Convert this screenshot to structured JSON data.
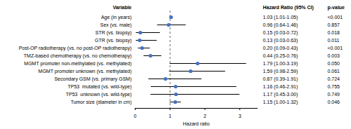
{
  "chart_data": {
    "type": "forest",
    "categories": [
      "Age (in years)",
      "Sex (vs. male)",
      "STR (vs. biopsy)",
      "GTR (vs. biopsy)",
      "Post-OP radiotherapy (vs. no post-OP radiotherapy)",
      "TMZ-based chemotherapy (vs. no chemotherapy)",
      "MGMT promoter non-methylated (vs. methylated)",
      "MGMT promoter unknown (vs. methylated)",
      "Secondary GSM (vs. primary GSM)",
      "TP53  mutated (vs. wild-type)",
      "TP53  unknown (vs. wild-type)",
      "Tumor size (diameter in cm)"
    ],
    "values": [
      1.03,
      0.96,
      0.15,
      0.13,
      0.2,
      0.44,
      1.79,
      1.59,
      0.87,
      1.16,
      1.17,
      1.15
    ],
    "ci_low": [
      1.01,
      0.64,
      0.03,
      0.03,
      0.09,
      0.25,
      1.0,
      0.98,
      0.39,
      0.46,
      0.45,
      1.0
    ],
    "ci_high": [
      1.05,
      1.46,
      0.72,
      0.63,
      0.43,
      0.76,
      3.19,
      2.59,
      1.91,
      2.91,
      3.0,
      1.32
    ],
    "value_labels": [
      "1.03 (1.01-1.05)",
      "0.96 (0.64-1.46)",
      "0.15 (0.03-0.72)",
      "0.13 (0.03-0.63)",
      "0.20 (0.09-0.43)",
      "0.44 (0.25-0.76)",
      "1.79 (1.00-3.19)",
      "1.59 (0.98-2.59)",
      "0.87 (0.39-1.91)",
      "1.16 (0.46-2.91)",
      "1.17 (0.45-3.00)",
      "1.15 (1.00-1.32)"
    ],
    "p_values": [
      "<0.001",
      "0.857",
      "0.018",
      "0.011",
      "<0.001",
      "0.003",
      "0.050",
      "0.061",
      "0.724",
      "0.755",
      "0.749",
      "0.046"
    ],
    "column_headers": [
      "Variable",
      "Hazard Ratio (95% CI)",
      "p-value"
    ],
    "xlabel": "Hazard ratio",
    "xlim": [
      0,
      3.5
    ],
    "xticks": [
      0,
      1,
      2,
      3
    ],
    "reference_line": 1,
    "color": "#4472C4",
    "grid": false
  }
}
